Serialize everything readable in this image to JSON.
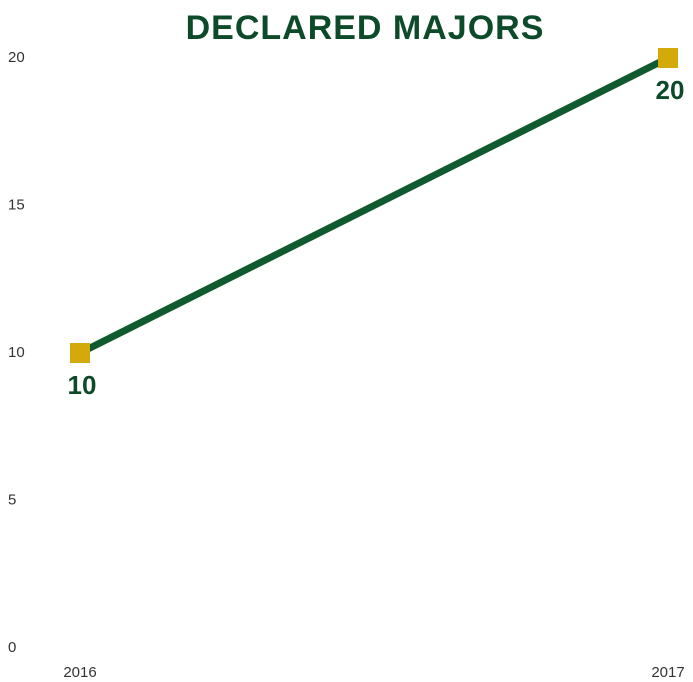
{
  "chart_data": {
    "type": "line",
    "title": "DECLARED MAJORS",
    "categories": [
      "2016",
      "2017"
    ],
    "values": [
      10,
      20
    ],
    "color": "#0f5a2e",
    "marker_color": "#d4a90a",
    "ylim": [
      0,
      20
    ],
    "yticks": [
      0,
      5,
      10,
      15,
      20
    ],
    "grid": false
  }
}
